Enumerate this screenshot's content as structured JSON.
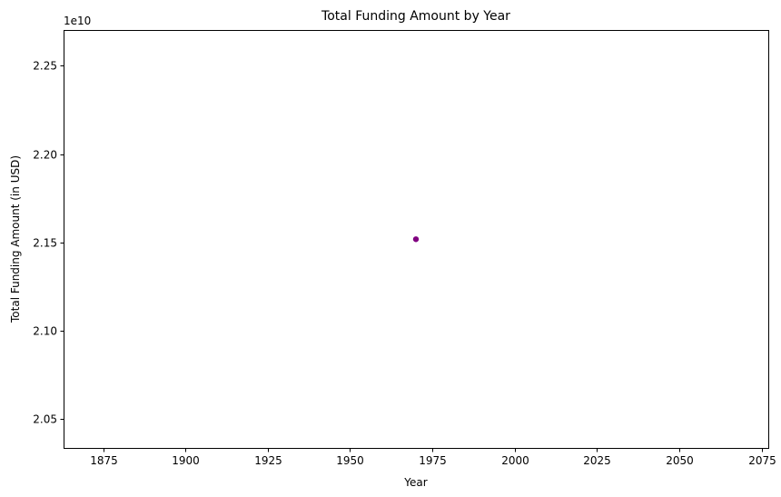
{
  "chart_data": {
    "type": "scatter",
    "title": "Total Funding Amount by Year",
    "xlabel": "Year",
    "ylabel": "Total Funding Amount (in USD)",
    "y_offset_label": "1e10",
    "xlim": [
      1863,
      2077
    ],
    "ylim": [
      2.0336,
      2.2703
    ],
    "y_scale_exponent": 10,
    "x_ticks": [
      1875,
      1900,
      1925,
      1950,
      1975,
      2000,
      2025,
      2050,
      2075
    ],
    "y_ticks": [
      2.05,
      2.1,
      2.15,
      2.2,
      2.25
    ],
    "x_tick_labels": [
      "1875",
      "1900",
      "1925",
      "1950",
      "1975",
      "2000",
      "2025",
      "2050",
      "2075"
    ],
    "y_tick_labels": [
      "2.05",
      "2.10",
      "2.15",
      "2.20",
      "2.25"
    ],
    "series": [
      {
        "color": "#800080",
        "x": [
          1970
        ],
        "y": [
          2.1518
        ]
      }
    ],
    "grid": false,
    "legend": "none"
  }
}
